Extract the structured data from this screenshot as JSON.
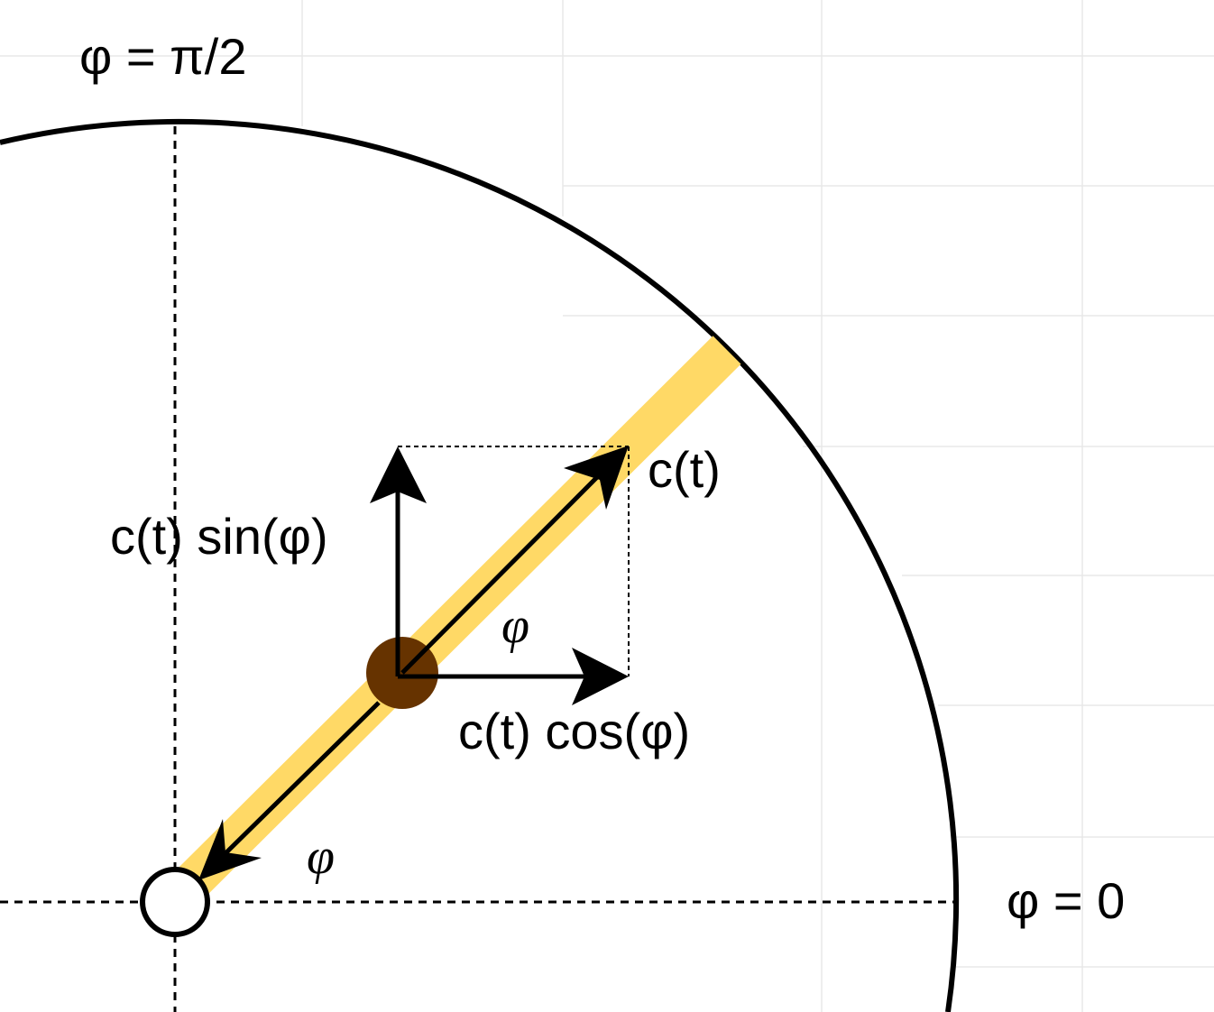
{
  "labels": {
    "phi_half_pi": "φ = π/2",
    "phi_zero": "φ = 0",
    "ct": "c(t)",
    "ct_sin": "c(t) sin(φ)",
    "ct_cos": "c(t) cos(φ)",
    "phi_mid": "φ",
    "phi_low": "φ"
  },
  "colors": {
    "rod": "#FFD966",
    "mass": "#663300",
    "line": "#000000",
    "grid": "#E8E8E8",
    "pivot_fill": "#FFFFFF"
  }
}
